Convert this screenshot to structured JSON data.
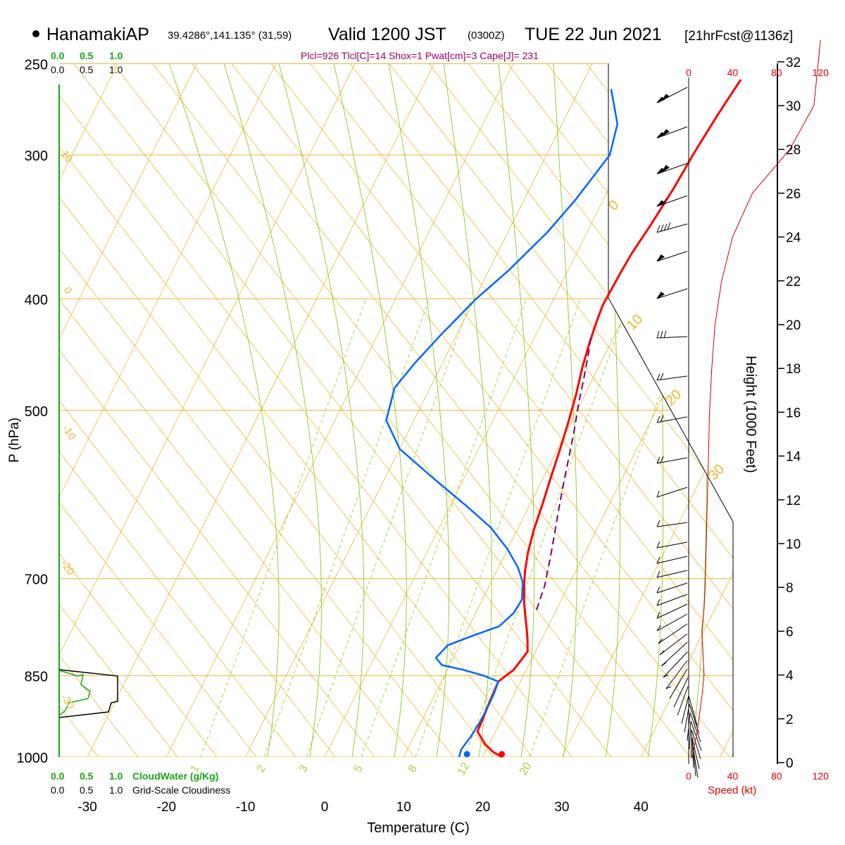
{
  "header": {
    "station_name": "HanamakiAP",
    "station_coords": "39.4286°,141.135° (31,59)",
    "valid_main": "Valid 1200 JST",
    "valid_z": "(0300Z)",
    "valid_date": "TUE 22 Jun 2021",
    "forecast_tag": "[21hrFcst@1136z]",
    "indices": "Plcl=926 Tlcl[C]=14 Shox=1 Pwat[cm]=3 Cape[J]= 231"
  },
  "colors": {
    "temperature": "#ff0000",
    "dewpoint": "#0066ff",
    "parcel": "#7a0060",
    "isotherm": "#e8b830",
    "moist_adiabat": "#8cc820",
    "mixing_ratio": "#a8d040",
    "cloud_water": "#1aa31a",
    "height_profile": "#cc0000",
    "indices_text": "#990066",
    "speed": "#e00000"
  },
  "legend": {
    "cloud_scale_top_green": [
      "0.0",
      "0.5",
      "1.0"
    ],
    "cloud_scale_top_black": [
      "0.0",
      "0.5",
      "1.0"
    ],
    "cloud_scale_bottom_green": [
      "0.0",
      "0.5",
      "1.0"
    ],
    "cloud_water_label": "CloudWater (g/Kg)",
    "cloud_scale_bottom_black": [
      "0.0",
      "0.5",
      "1.0"
    ],
    "cloudiness_label": "Grid-Scale Cloudiness"
  },
  "skewt_labels": {
    "isotherm_labels": [
      "10",
      "0",
      "-10",
      "-20",
      "-30",
      "0",
      "10",
      "20",
      "30"
    ],
    "mixing_ratio_labels": [
      "1",
      "2",
      "3",
      "5",
      "8",
      "12",
      "20"
    ]
  },
  "chart_data": [
    {
      "type": "line",
      "title": "",
      "xlabel": "Temperature (C)",
      "ylabel": "P (hPa)",
      "x_ticks": [
        "-30",
        "-20",
        "-10",
        "0",
        "10",
        "20",
        "30",
        "40"
      ],
      "y_ticks": [
        "250",
        "300",
        "400",
        "500",
        "700",
        "850",
        "1000"
      ],
      "y_scale": "log",
      "series": [
        {
          "points": [
            [
              22.4,
              1000
            ],
            [
              21,
              990
            ],
            [
              19.5,
              975
            ],
            [
              17.7,
              950
            ],
            [
              17.6,
              925
            ],
            [
              17.4,
              900
            ],
            [
              17.2,
              860
            ],
            [
              18.4,
              840
            ],
            [
              19.0,
              810
            ],
            [
              18.2,
              790
            ],
            [
              17.5,
              775
            ],
            [
              16.5,
              755
            ],
            [
              15.5,
              735
            ],
            [
              14.4,
              710
            ],
            [
              13.6,
              690
            ],
            [
              12.8,
              665
            ],
            [
              12.1,
              635
            ],
            [
              11.6,
              605
            ],
            [
              11.0,
              575
            ],
            [
              10.3,
              540
            ],
            [
              9.6,
              510
            ],
            [
              8.9,
              485
            ],
            [
              8.0,
              460
            ],
            [
              7.4,
              440
            ],
            [
              6.9,
              420
            ],
            [
              6.6,
              405
            ],
            [
              6.8,
              380
            ],
            [
              7.0,
              365
            ],
            [
              7.6,
              345
            ],
            [
              8.2,
              320
            ],
            [
              8.5,
              300
            ],
            [
              9.1,
              277
            ],
            [
              9.8,
              258
            ]
          ]
        },
        {
          "points": [
            [
              17.0,
              1000
            ],
            [
              16.8,
              985
            ],
            [
              17.2,
              960
            ],
            [
              17.4,
              935
            ],
            [
              17.5,
              910
            ],
            [
              17.4,
              880
            ],
            [
              17.2,
              860
            ],
            [
              15.0,
              850
            ],
            [
              12.0,
              840
            ],
            [
              9.0,
              832
            ],
            [
              7.8,
              820
            ],
            [
              8.5,
              800
            ],
            [
              11.0,
              785
            ],
            [
              13.8,
              770
            ],
            [
              14.8,
              750
            ],
            [
              15.0,
              730
            ],
            [
              14.0,
              705
            ],
            [
              12.5,
              685
            ],
            [
              10.0,
              660
            ],
            [
              6.5,
              632
            ],
            [
              2.0,
              605
            ],
            [
              -4.0,
              572
            ],
            [
              -10.0,
              540
            ],
            [
              -13.5,
              510
            ],
            [
              -14.5,
              478
            ],
            [
              -13.5,
              455
            ],
            [
              -12.0,
              430
            ],
            [
              -9.8,
              400
            ],
            [
              -7.5,
              378
            ],
            [
              -5.0,
              350
            ],
            [
              -3.5,
              328
            ],
            [
              -2.0,
              300
            ],
            [
              -3.0,
              282
            ],
            [
              -6.0,
              263
            ]
          ]
        },
        {
          "points": [
            [
              17.5,
              745
            ],
            [
              17.0,
              710
            ],
            [
              15.9,
              670
            ],
            [
              14.8,
              635
            ],
            [
              13.8,
              605
            ],
            [
              12.8,
              575
            ],
            [
              11.9,
              548
            ],
            [
              10.9,
              520
            ],
            [
              9.8,
              494
            ],
            [
              8.8,
              468
            ],
            [
              7.8,
              445
            ],
            [
              7.0,
              430
            ]
          ]
        }
      ],
      "markers": [
        [
          22.4,
          1000
        ],
        [
          18.0,
          1000
        ]
      ]
    },
    {
      "type": "line",
      "title": "",
      "ylabel": "Height (1000 Feet)",
      "xlabel": "Speed (kt)",
      "speed_ticks": [
        "0",
        "40",
        "80",
        "120"
      ],
      "height_ticks": [
        "0",
        "2",
        "4",
        "6",
        "8",
        "10",
        "12",
        "14",
        "16",
        "18",
        "20",
        "22",
        "24",
        "26",
        "28",
        "30",
        "32"
      ],
      "speed_height_profile": [
        [
          3,
          0.2
        ],
        [
          8,
          1.5
        ],
        [
          12,
          3
        ],
        [
          14,
          4
        ],
        [
          13,
          5
        ],
        [
          12,
          6
        ],
        [
          14,
          7
        ],
        [
          15,
          8
        ],
        [
          16,
          10
        ],
        [
          17,
          12
        ],
        [
          18,
          14
        ],
        [
          19,
          16
        ],
        [
          21,
          18
        ],
        [
          24,
          20
        ],
        [
          30,
          22
        ],
        [
          40,
          24
        ],
        [
          58,
          26
        ],
        [
          92,
          28
        ],
        [
          114,
          30
        ],
        [
          118,
          32
        ],
        [
          120,
          33
        ]
      ]
    }
  ]
}
